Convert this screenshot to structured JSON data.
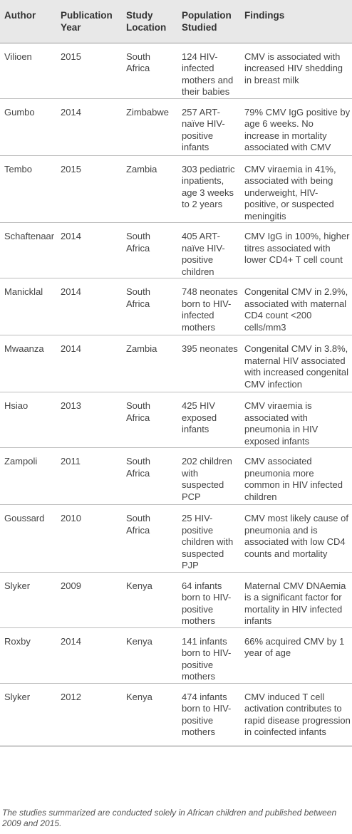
{
  "table": {
    "headers": {
      "author": "Author",
      "year": "Publication Year",
      "location": "Study Location",
      "population": "Population Studied",
      "findings": "Findings"
    },
    "rows": [
      {
        "author": "Vilioen",
        "year": "2015",
        "location": "South Africa",
        "population": "124 HIV-infected mothers and their babies",
        "findings": "CMV is associated with increased HIV shedding in breast milk"
      },
      {
        "author": "Gumbo",
        "year": "2014",
        "location": "Zimbabwe",
        "population": "257 ART-naïve HIV-positive infants",
        "findings": "79% CMV IgG positive by age 6 weeks. No increase in mortality associated with CMV"
      },
      {
        "author": "Tembo",
        "year": "2015",
        "location": "Zambia",
        "population": "303 pediatric inpatients, age 3 weeks to 2 years",
        "findings": "CMV viraemia in 41%, associated with being underweight, HIV-positive, or suspected meningitis"
      },
      {
        "author": "Schaftenaar",
        "year": "2014",
        "location": "South Africa",
        "population": "405 ART-naïve HIV-positive children",
        "findings": "CMV IgG in 100%, higher titres associated with lower CD4+ T cell count"
      },
      {
        "author": "Manicklal",
        "year": "2014",
        "location": "South Africa",
        "population": "748 neonates born to HIV-infected mothers",
        "findings": "Congenital CMV in 2.9%, associated with maternal CD4 count <200 cells/mm3"
      },
      {
        "author": "Mwaanza",
        "year": "2014",
        "location": "Zambia",
        "population": "395 neonates",
        "findings": "Congenital CMV in 3.8%, maternal HIV associated with increased congenital CMV infection"
      },
      {
        "author": "Hsiao",
        "year": "2013",
        "location": "South Africa",
        "population": "425 HIV exposed infants",
        "findings": "CMV viraemia is associated with pneumonia in HIV exposed infants"
      },
      {
        "author": "Zampoli",
        "year": "2011",
        "location": "South Africa",
        "population": "202 children with suspected PCP",
        "findings": "CMV associated pneumonia more common in HIV infected children"
      },
      {
        "author": "Goussard",
        "year": "2010",
        "location": "South Africa",
        "population": "25 HIV-positive children with suspected PJP",
        "findings": "CMV most likely cause of pneumonia and is associated with low CD4 counts and mortality"
      },
      {
        "author": "Slyker",
        "year": "2009",
        "location": "Kenya",
        "population": "64 infants born to HIV-positive mothers",
        "findings": "Maternal CMV DNAemia is a significant factor for mortality in HIV infected infants"
      },
      {
        "author": "Roxby",
        "year": "2014",
        "location": "Kenya",
        "population": "141 infants born to HIV-positive mothers",
        "findings": "66% acquired CMV by 1 year of age"
      },
      {
        "author": "Slyker",
        "year": "2012",
        "location": "Kenya",
        "population": "474 infants born to HIV-positive mothers",
        "findings": "CMV induced T cell activation contributes to rapid disease progression in coinfected infants"
      }
    ]
  },
  "caption": "The studies summarized are conducted solely in African children and published between 2009 and 2015."
}
